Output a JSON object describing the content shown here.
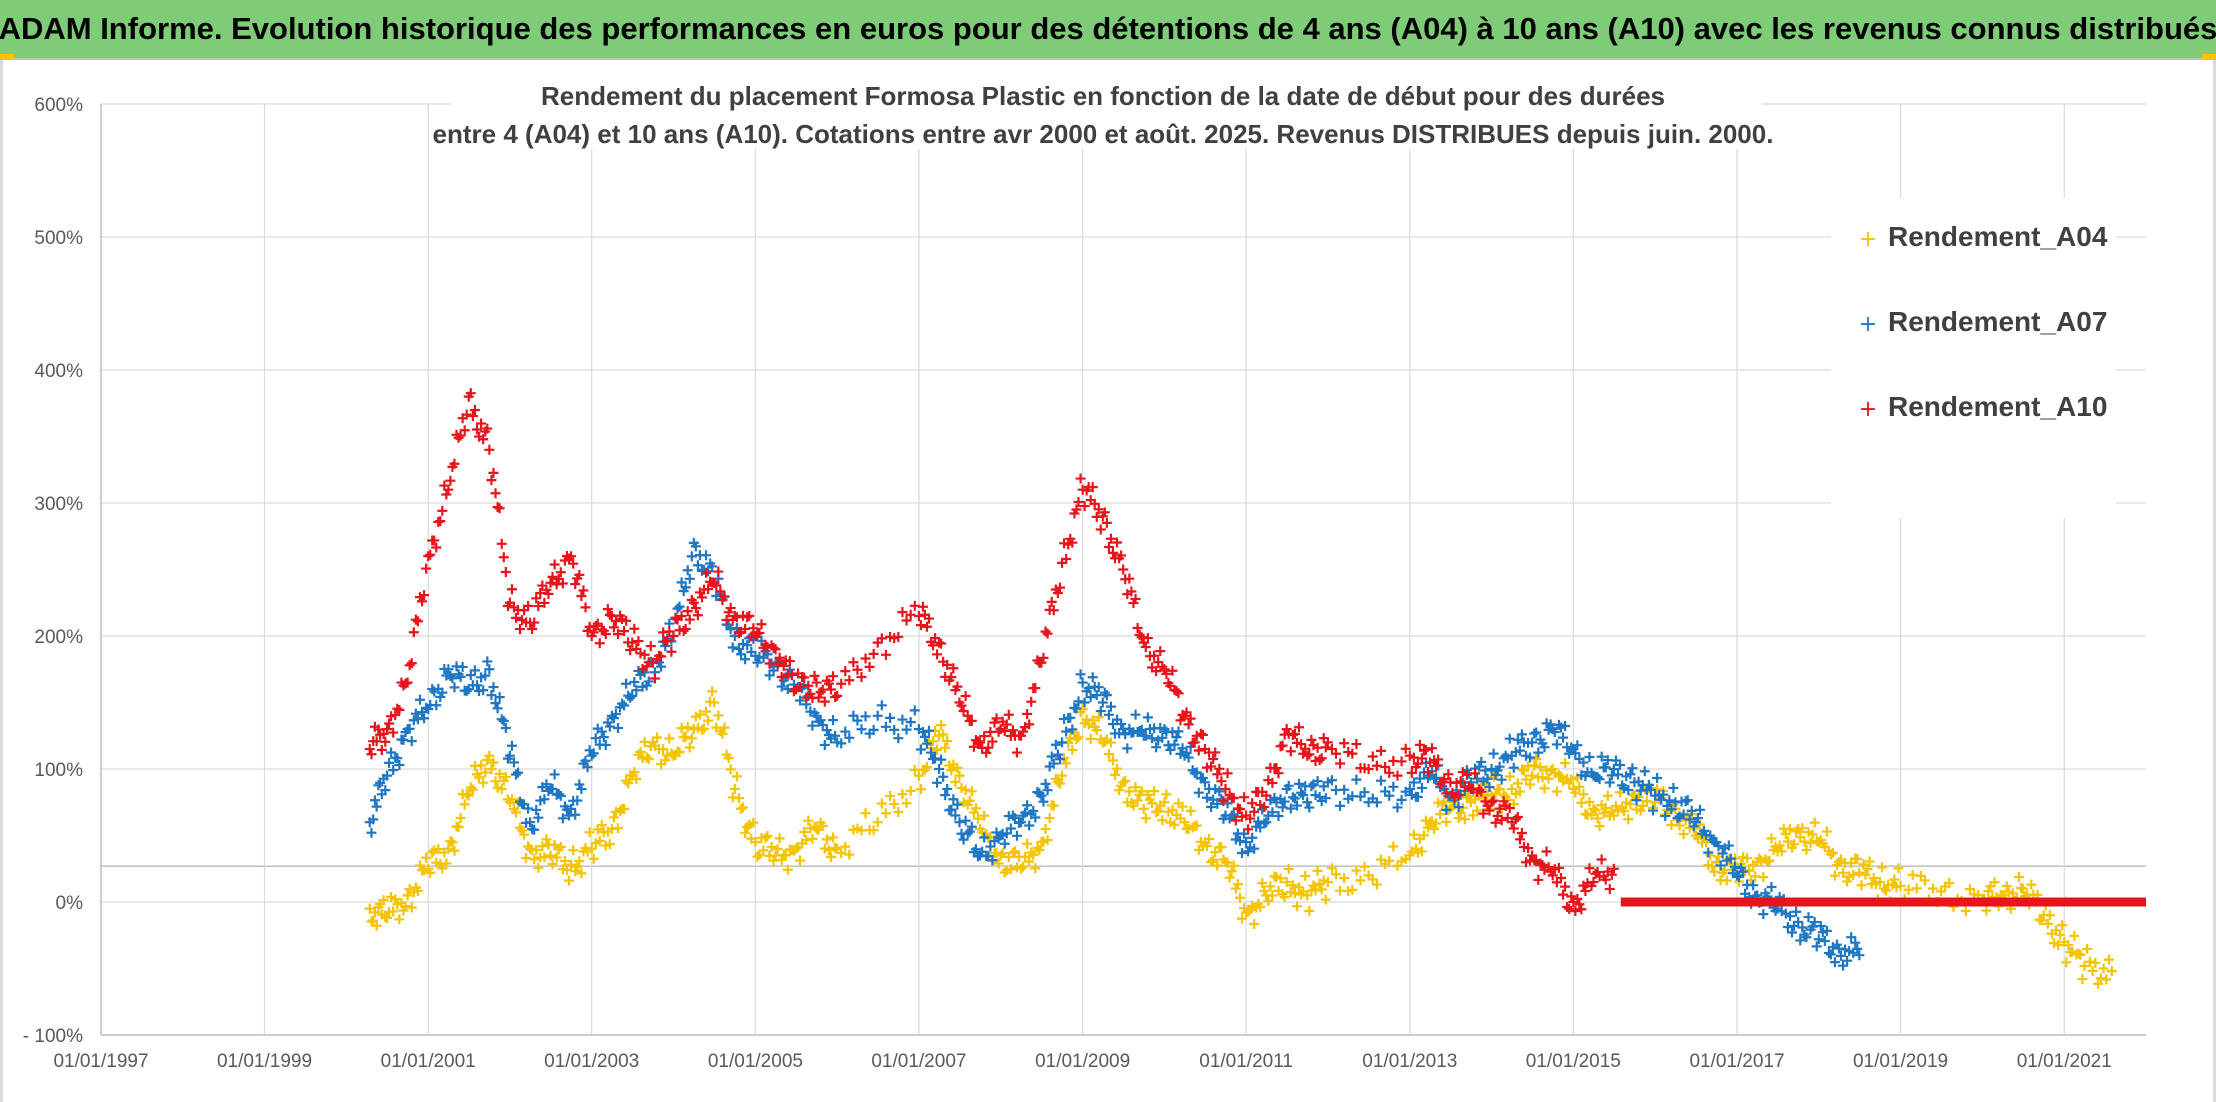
{
  "banner": {
    "title": "ADAM Informe. Evolution historique des performances en euros pour des détentions de 4 ans (A04) à 10 ans (A10) avec les revenus connus distribués"
  },
  "colors": {
    "banner_bg": "#7fcc78",
    "A04": "#f5c400",
    "A07": "#1f77c4",
    "A10": "#e8141c"
  },
  "chart_data": {
    "type": "scatter",
    "title_line1": "Rendement du placement Formosa Plastic  en fonction de la date de début pour des durées",
    "title_line2": "entre 4 (A04) et 10 ans (A10). Cotations entre avr 2000 et août. 2025. Revenus DISTRIBUES depuis juin. 2000.",
    "xlabel": "",
    "ylabel": "",
    "x_range": [
      "1997-01-01",
      "2022-01-01"
    ],
    "y_range": [
      -100,
      600
    ],
    "y_unit": "%",
    "grid": true,
    "legend_position": "right",
    "x_ticks": [
      "01/01/1997",
      "01/01/1999",
      "01/01/2001",
      "01/01/2003",
      "01/01/2005",
      "01/01/2007",
      "01/01/2009",
      "01/01/2011",
      "01/01/2013",
      "01/01/2015",
      "01/01/2017",
      "01/01/2019",
      "01/01/2021"
    ],
    "y_ticks": [
      "- 100%",
      "0%",
      "100%",
      "200%",
      "300%",
      "400%",
      "500%",
      "600%"
    ],
    "series": [
      {
        "name": "Rendement_A04",
        "color": "#f5c400",
        "points": [
          [
            "2000-04-15",
            -5
          ],
          [
            "2000-07-01",
            -12
          ],
          [
            "2000-10-01",
            5
          ],
          [
            "2001-01-01",
            25
          ],
          [
            "2001-04-01",
            40
          ],
          [
            "2001-07-01",
            80
          ],
          [
            "2001-10-01",
            110
          ],
          [
            "2002-01-01",
            75
          ],
          [
            "2002-04-01",
            40
          ],
          [
            "2002-07-01",
            35
          ],
          [
            "2002-10-01",
            28
          ],
          [
            "2003-01-01",
            40
          ],
          [
            "2003-04-01",
            55
          ],
          [
            "2003-07-01",
            95
          ],
          [
            "2003-10-01",
            120
          ],
          [
            "2004-01-01",
            110
          ],
          [
            "2004-04-01",
            130
          ],
          [
            "2004-07-01",
            150
          ],
          [
            "2004-10-01",
            85
          ],
          [
            "2005-01-01",
            45
          ],
          [
            "2005-04-01",
            35
          ],
          [
            "2005-07-01",
            40
          ],
          [
            "2005-10-01",
            55
          ],
          [
            "2006-01-01",
            40
          ],
          [
            "2006-07-01",
            60
          ],
          [
            "2007-01-01",
            95
          ],
          [
            "2007-04-01",
            125
          ],
          [
            "2007-07-01",
            95
          ],
          [
            "2007-10-01",
            55
          ],
          [
            "2008-01-01",
            35
          ],
          [
            "2008-04-01",
            25
          ],
          [
            "2008-07-01",
            45
          ],
          [
            "2008-10-01",
            95
          ],
          [
            "2009-01-01",
            145
          ],
          [
            "2009-04-01",
            120
          ],
          [
            "2009-07-01",
            90
          ],
          [
            "2009-10-01",
            70
          ],
          [
            "2010-01-01",
            75
          ],
          [
            "2010-04-01",
            60
          ],
          [
            "2010-07-01",
            45
          ],
          [
            "2010-10-01",
            30
          ],
          [
            "2011-01-01",
            -8
          ],
          [
            "2011-04-01",
            5
          ],
          [
            "2011-07-01",
            15
          ],
          [
            "2011-10-01",
            5
          ],
          [
            "2012-01-01",
            15
          ],
          [
            "2012-07-01",
            20
          ],
          [
            "2013-01-01",
            35
          ],
          [
            "2013-04-01",
            60
          ],
          [
            "2013-07-01",
            70
          ],
          [
            "2013-10-01",
            75
          ],
          [
            "2014-01-01",
            80
          ],
          [
            "2014-04-01",
            85
          ],
          [
            "2014-07-01",
            95
          ],
          [
            "2014-10-01",
            100
          ],
          [
            "2015-01-01",
            85
          ],
          [
            "2015-04-01",
            70
          ],
          [
            "2015-07-01",
            65
          ],
          [
            "2015-10-01",
            80
          ],
          [
            "2016-01-01",
            75
          ],
          [
            "2016-04-01",
            70
          ],
          [
            "2016-07-01",
            50
          ],
          [
            "2016-10-01",
            30
          ],
          [
            "2017-01-01",
            20
          ],
          [
            "2017-04-01",
            30
          ],
          [
            "2017-07-01",
            38
          ],
          [
            "2017-10-01",
            55
          ],
          [
            "2018-01-01",
            45
          ],
          [
            "2018-04-01",
            30
          ],
          [
            "2018-07-01",
            22
          ],
          [
            "2018-10-01",
            15
          ],
          [
            "2019-01-01",
            12
          ],
          [
            "2019-07-01",
            8
          ],
          [
            "2020-01-01",
            2
          ],
          [
            "2020-04-01",
            5
          ],
          [
            "2020-07-01",
            10
          ],
          [
            "2020-10-01",
            -10
          ],
          [
            "2021-01-01",
            -30
          ],
          [
            "2021-04-01",
            -48
          ],
          [
            "2021-08-01",
            -52
          ]
        ]
      },
      {
        "name": "Rendement_A07",
        "color": "#1f77c4",
        "points": [
          [
            "2000-04-15",
            60
          ],
          [
            "2000-07-01",
            95
          ],
          [
            "2000-10-01",
            130
          ],
          [
            "2001-01-01",
            145
          ],
          [
            "2001-04-01",
            175
          ],
          [
            "2001-07-01",
            160
          ],
          [
            "2001-10-01",
            175
          ],
          [
            "2002-01-01",
            110
          ],
          [
            "2002-04-01",
            60
          ],
          [
            "2002-07-01",
            85
          ],
          [
            "2002-10-01",
            70
          ],
          [
            "2003-01-01",
            110
          ],
          [
            "2003-04-01",
            140
          ],
          [
            "2003-07-01",
            155
          ],
          [
            "2003-10-01",
            180
          ],
          [
            "2004-01-01",
            200
          ],
          [
            "2004-04-01",
            270
          ],
          [
            "2004-07-01",
            240
          ],
          [
            "2004-10-01",
            200
          ],
          [
            "2005-01-01",
            185
          ],
          [
            "2005-04-01",
            180
          ],
          [
            "2005-07-01",
            160
          ],
          [
            "2005-10-01",
            140
          ],
          [
            "2006-01-01",
            120
          ],
          [
            "2006-07-01",
            140
          ],
          [
            "2007-01-01",
            130
          ],
          [
            "2007-04-01",
            100
          ],
          [
            "2007-07-01",
            60
          ],
          [
            "2007-10-01",
            35
          ],
          [
            "2008-01-01",
            50
          ],
          [
            "2008-04-01",
            60
          ],
          [
            "2008-07-01",
            80
          ],
          [
            "2008-10-01",
            120
          ],
          [
            "2009-01-01",
            165
          ],
          [
            "2009-04-01",
            150
          ],
          [
            "2009-07-01",
            130
          ],
          [
            "2009-10-01",
            125
          ],
          [
            "2010-01-01",
            130
          ],
          [
            "2010-04-01",
            110
          ],
          [
            "2010-07-01",
            90
          ],
          [
            "2010-10-01",
            65
          ],
          [
            "2011-01-01",
            45
          ],
          [
            "2011-04-01",
            60
          ],
          [
            "2011-07-01",
            85
          ],
          [
            "2011-10-01",
            75
          ],
          [
            "2012-01-01",
            90
          ],
          [
            "2012-07-01",
            75
          ],
          [
            "2013-01-01",
            85
          ],
          [
            "2013-04-01",
            95
          ],
          [
            "2013-07-01",
            80
          ],
          [
            "2013-10-01",
            90
          ],
          [
            "2014-01-01",
            100
          ],
          [
            "2014-04-01",
            110
          ],
          [
            "2014-07-01",
            120
          ],
          [
            "2014-10-01",
            130
          ],
          [
            "2015-01-01",
            115
          ],
          [
            "2015-04-01",
            95
          ],
          [
            "2015-07-01",
            100
          ],
          [
            "2015-10-01",
            90
          ],
          [
            "2016-01-01",
            80
          ],
          [
            "2016-04-01",
            75
          ],
          [
            "2016-07-01",
            60
          ],
          [
            "2016-10-01",
            45
          ],
          [
            "2017-01-01",
            20
          ],
          [
            "2017-04-01",
            5
          ],
          [
            "2017-07-01",
            -5
          ],
          [
            "2017-10-01",
            -15
          ],
          [
            "2018-01-01",
            -28
          ],
          [
            "2018-04-01",
            -35
          ],
          [
            "2018-07-01",
            -40
          ]
        ]
      },
      {
        "name": "Rendement_A10",
        "color": "#e8141c",
        "points": [
          [
            "2000-04-15",
            115
          ],
          [
            "2000-07-01",
            130
          ],
          [
            "2000-10-01",
            165
          ],
          [
            "2001-01-01",
            260
          ],
          [
            "2001-04-01",
            310
          ],
          [
            "2001-07-01",
            380
          ],
          [
            "2001-10-01",
            340
          ],
          [
            "2002-01-01",
            225
          ],
          [
            "2002-04-01",
            210
          ],
          [
            "2002-07-01",
            240
          ],
          [
            "2002-10-01",
            260
          ],
          [
            "2003-01-01",
            200
          ],
          [
            "2003-04-01",
            215
          ],
          [
            "2003-07-01",
            195
          ],
          [
            "2003-10-01",
            180
          ],
          [
            "2004-01-01",
            200
          ],
          [
            "2004-04-01",
            225
          ],
          [
            "2004-07-01",
            240
          ],
          [
            "2004-10-01",
            215
          ],
          [
            "2005-01-01",
            200
          ],
          [
            "2005-04-01",
            190
          ],
          [
            "2005-07-01",
            160
          ],
          [
            "2005-10-01",
            165
          ],
          [
            "2006-01-01",
            155
          ],
          [
            "2006-07-01",
            195
          ],
          [
            "2007-01-01",
            215
          ],
          [
            "2007-04-01",
            195
          ],
          [
            "2007-07-01",
            150
          ],
          [
            "2007-10-01",
            120
          ],
          [
            "2008-01-01",
            130
          ],
          [
            "2008-04-01",
            125
          ],
          [
            "2008-07-01",
            180
          ],
          [
            "2008-10-01",
            255
          ],
          [
            "2009-01-01",
            310
          ],
          [
            "2009-04-01",
            290
          ],
          [
            "2009-07-01",
            250
          ],
          [
            "2009-10-01",
            195
          ],
          [
            "2010-01-01",
            175
          ],
          [
            "2010-04-01",
            140
          ],
          [
            "2010-07-01",
            115
          ],
          [
            "2010-10-01",
            85
          ],
          [
            "2011-01-01",
            65
          ],
          [
            "2011-04-01",
            80
          ],
          [
            "2011-07-01",
            130
          ],
          [
            "2011-10-01",
            110
          ],
          [
            "2012-01-01",
            120
          ],
          [
            "2012-07-01",
            100
          ],
          [
            "2013-01-01",
            110
          ],
          [
            "2013-04-01",
            105
          ],
          [
            "2013-07-01",
            90
          ],
          [
            "2013-10-01",
            85
          ],
          [
            "2014-01-01",
            75
          ],
          [
            "2014-04-01",
            60
          ],
          [
            "2014-07-01",
            35
          ],
          [
            "2014-10-01",
            20
          ],
          [
            "2015-01-01",
            0
          ],
          [
            "2015-04-01",
            15
          ],
          [
            "2015-07-01",
            25
          ]
        ],
        "flat_segment": {
          "from": "2015-08-01",
          "to": "2022-01-01",
          "value": 0
        }
      }
    ]
  }
}
